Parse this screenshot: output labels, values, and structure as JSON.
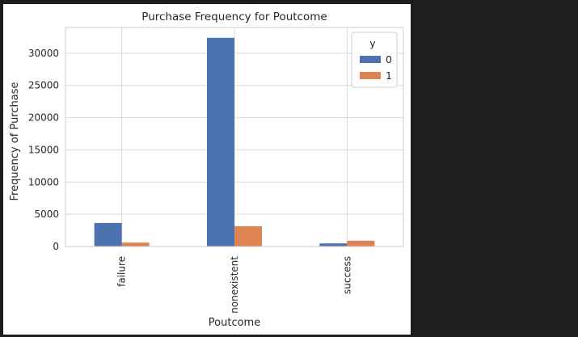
{
  "chart_data": {
    "type": "bar",
    "title": "Purchase Frequency for Poutcome",
    "xlabel": "Poutcome",
    "ylabel": "Frequency of Purchase",
    "categories": [
      "failure",
      "nonexistent",
      "success"
    ],
    "series": [
      {
        "name": "0",
        "color": "#4c72b0",
        "values": [
          3650,
          32400,
          480
        ]
      },
      {
        "name": "1",
        "color": "#dd8452",
        "values": [
          600,
          3150,
          900
        ]
      }
    ],
    "ylim": [
      0,
      34000
    ],
    "yticks": [
      0,
      5000,
      10000,
      15000,
      20000,
      25000,
      30000
    ],
    "grid": true,
    "legend_title": "y",
    "legend_position": "top-right"
  }
}
